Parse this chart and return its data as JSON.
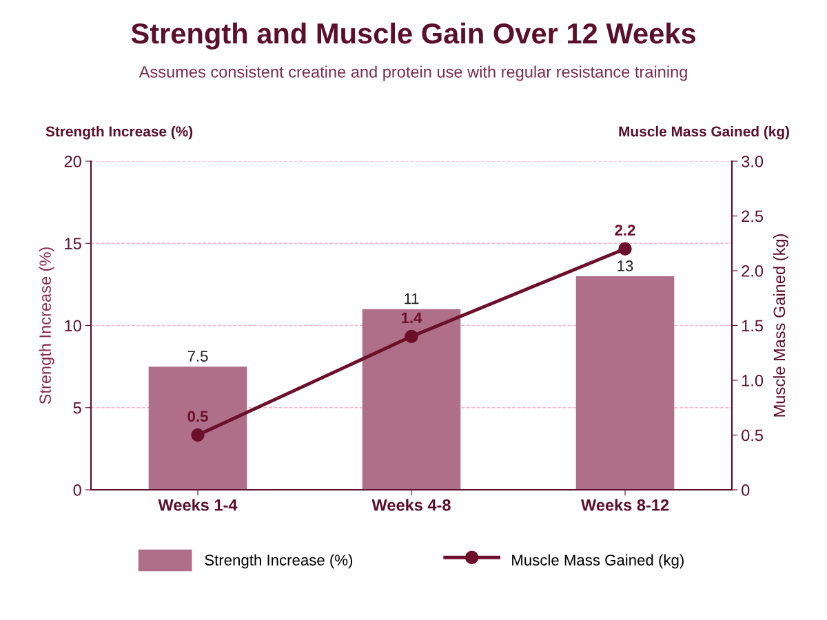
{
  "chart_data": {
    "type": "bar",
    "title": "Strength and Muscle Gain Over 12 Weeks",
    "subtitle": "Assumes consistent creatine and protein use with regular resistance training",
    "ylabel": "Strength Increase (%)",
    "y2label": "Muscle Mass Gained (kg)",
    "annotations": [
      "Strength Increase (%)",
      "Muscle Mass Gained (kg)"
    ],
    "categories": [
      "Weeks 1-4",
      "Weeks 4-8",
      "Weeks 8-12"
    ],
    "series": [
      {
        "name": "Strength Increase (%)",
        "color": "#b06f88",
        "values": [
          7.5,
          11,
          13
        ]
      },
      {
        "name": "Muscle Mass Gained (kg)",
        "type": "line",
        "axis": "y2",
        "color": "#6b0f2a",
        "values": [
          0.5,
          1.4,
          2.2
        ],
        "marker": "circle"
      }
    ],
    "ylim": [
      0,
      20
    ],
    "yticks": [
      0,
      5,
      10,
      15,
      20
    ],
    "y2lim": [
      0,
      3.0
    ],
    "y2ticks": [
      {
        "value": 0,
        "label": "0"
      },
      {
        "value": 0.5,
        "label": "0.5"
      },
      {
        "value": 1.0,
        "label": "1.0"
      },
      {
        "value": 1.5,
        "label": "1.5"
      },
      {
        "value": 2.0,
        "label": "2.0"
      },
      {
        "value": 2.5,
        "label": "2.5"
      },
      {
        "value": 3.0,
        "label": "3.0"
      }
    ],
    "grid": "y",
    "legend": "bottom",
    "data_labels": true
  }
}
